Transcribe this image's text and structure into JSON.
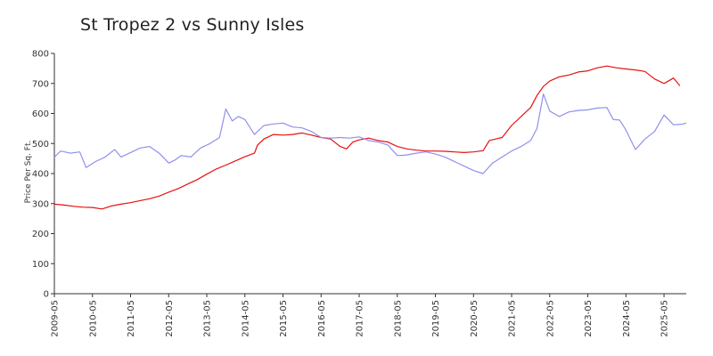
{
  "chart_data": {
    "type": "line",
    "title": "St Tropez 2 vs Sunny Isles",
    "xlabel": "",
    "ylabel": "Price Per Sq. Ft.",
    "ylim": [
      0,
      800
    ],
    "xlim": [
      "2009-05",
      "2025-12"
    ],
    "grid": false,
    "legend": "none",
    "y_ticks": [
      0,
      100,
      200,
      300,
      400,
      500,
      600,
      700,
      800
    ],
    "x_ticks": [
      "2009-05",
      "2010-05",
      "2011-05",
      "2012-05",
      "2013-05",
      "2014-05",
      "2015-05",
      "2016-05",
      "2017-05",
      "2018-05",
      "2019-05",
      "2020-05",
      "2021-05",
      "2022-05",
      "2023-05",
      "2024-05",
      "2025-05"
    ],
    "series": [
      {
        "color": "#e81010",
        "points": [
          [
            "2009-05",
            298
          ],
          [
            "2009-08",
            295
          ],
          [
            "2009-11",
            291
          ],
          [
            "2010-02",
            288
          ],
          [
            "2010-05",
            287
          ],
          [
            "2010-08",
            282
          ],
          [
            "2010-11",
            292
          ],
          [
            "2011-02",
            298
          ],
          [
            "2011-05",
            303
          ],
          [
            "2011-08",
            310
          ],
          [
            "2011-11",
            316
          ],
          [
            "2012-02",
            325
          ],
          [
            "2012-05",
            338
          ],
          [
            "2012-08",
            350
          ],
          [
            "2012-11",
            365
          ],
          [
            "2013-02",
            380
          ],
          [
            "2013-05",
            398
          ],
          [
            "2013-08",
            415
          ],
          [
            "2013-11",
            428
          ],
          [
            "2014-02",
            442
          ],
          [
            "2014-05",
            456
          ],
          [
            "2014-08",
            468
          ],
          [
            "2014-09",
            495
          ],
          [
            "2014-11",
            515
          ],
          [
            "2015-02",
            530
          ],
          [
            "2015-05",
            528
          ],
          [
            "2015-08",
            530
          ],
          [
            "2015-11",
            535
          ],
          [
            "2016-02",
            528
          ],
          [
            "2016-05",
            520
          ],
          [
            "2016-08",
            515
          ],
          [
            "2016-11",
            490
          ],
          [
            "2017-01",
            482
          ],
          [
            "2017-03",
            505
          ],
          [
            "2017-05",
            512
          ],
          [
            "2017-08",
            518
          ],
          [
            "2017-11",
            510
          ],
          [
            "2018-02",
            505
          ],
          [
            "2018-05",
            490
          ],
          [
            "2018-08",
            482
          ],
          [
            "2018-11",
            478
          ],
          [
            "2019-02",
            475
          ],
          [
            "2019-05",
            475
          ],
          [
            "2019-08",
            474
          ],
          [
            "2019-11",
            472
          ],
          [
            "2020-02",
            470
          ],
          [
            "2020-05",
            472
          ],
          [
            "2020-08",
            476
          ],
          [
            "2020-10",
            510
          ],
          [
            "2020-12",
            515
          ],
          [
            "2021-02",
            520
          ],
          [
            "2021-05",
            560
          ],
          [
            "2021-08",
            590
          ],
          [
            "2021-11",
            620
          ],
          [
            "2022-01",
            660
          ],
          [
            "2022-03",
            690
          ],
          [
            "2022-05",
            708
          ],
          [
            "2022-08",
            722
          ],
          [
            "2022-11",
            728
          ],
          [
            "2023-02",
            738
          ],
          [
            "2023-05",
            742
          ],
          [
            "2023-08",
            752
          ],
          [
            "2023-11",
            758
          ],
          [
            "2024-02",
            752
          ],
          [
            "2024-05",
            748
          ],
          [
            "2024-08",
            745
          ],
          [
            "2024-11",
            740
          ],
          [
            "2025-02",
            715
          ],
          [
            "2025-05",
            700
          ],
          [
            "2025-08",
            718
          ],
          [
            "2025-10",
            692
          ]
        ]
      },
      {
        "color": "#9090ee",
        "points": [
          [
            "2009-05",
            455
          ],
          [
            "2009-07",
            475
          ],
          [
            "2009-10",
            468
          ],
          [
            "2010-01",
            472
          ],
          [
            "2010-03",
            420
          ],
          [
            "2010-06",
            440
          ],
          [
            "2010-09",
            455
          ],
          [
            "2010-12",
            480
          ],
          [
            "2011-02",
            455
          ],
          [
            "2011-05",
            470
          ],
          [
            "2011-08",
            485
          ],
          [
            "2011-11",
            490
          ],
          [
            "2012-02",
            468
          ],
          [
            "2012-05",
            435
          ],
          [
            "2012-07",
            445
          ],
          [
            "2012-09",
            460
          ],
          [
            "2012-12",
            455
          ],
          [
            "2013-03",
            485
          ],
          [
            "2013-06",
            500
          ],
          [
            "2013-09",
            520
          ],
          [
            "2013-11",
            615
          ],
          [
            "2014-01",
            575
          ],
          [
            "2014-03",
            590
          ],
          [
            "2014-05",
            580
          ],
          [
            "2014-08",
            530
          ],
          [
            "2014-11",
            560
          ],
          [
            "2015-02",
            565
          ],
          [
            "2015-05",
            568
          ],
          [
            "2015-08",
            555
          ],
          [
            "2015-11",
            552
          ],
          [
            "2016-02",
            540
          ],
          [
            "2016-05",
            520
          ],
          [
            "2016-08",
            518
          ],
          [
            "2016-11",
            520
          ],
          [
            "2017-02",
            518
          ],
          [
            "2017-05",
            522
          ],
          [
            "2017-08",
            510
          ],
          [
            "2017-11",
            505
          ],
          [
            "2018-02",
            495
          ],
          [
            "2018-05",
            460
          ],
          [
            "2018-08",
            462
          ],
          [
            "2018-11",
            468
          ],
          [
            "2019-02",
            472
          ],
          [
            "2019-05",
            465
          ],
          [
            "2019-08",
            455
          ],
          [
            "2019-11",
            440
          ],
          [
            "2020-02",
            425
          ],
          [
            "2020-05",
            410
          ],
          [
            "2020-08",
            400
          ],
          [
            "2020-11",
            435
          ],
          [
            "2021-02",
            455
          ],
          [
            "2021-05",
            475
          ],
          [
            "2021-08",
            490
          ],
          [
            "2021-11",
            510
          ],
          [
            "2022-01",
            550
          ],
          [
            "2022-03",
            665
          ],
          [
            "2022-05",
            608
          ],
          [
            "2022-08",
            590
          ],
          [
            "2022-11",
            605
          ],
          [
            "2023-02",
            610
          ],
          [
            "2023-05",
            612
          ],
          [
            "2023-08",
            618
          ],
          [
            "2023-11",
            620
          ],
          [
            "2024-01",
            580
          ],
          [
            "2024-03",
            578
          ],
          [
            "2024-05",
            545
          ],
          [
            "2024-08",
            480
          ],
          [
            "2024-11",
            515
          ],
          [
            "2025-02",
            540
          ],
          [
            "2025-05",
            595
          ],
          [
            "2025-08",
            562
          ],
          [
            "2025-11",
            565
          ],
          [
            "2025-12",
            568
          ]
        ]
      }
    ]
  }
}
